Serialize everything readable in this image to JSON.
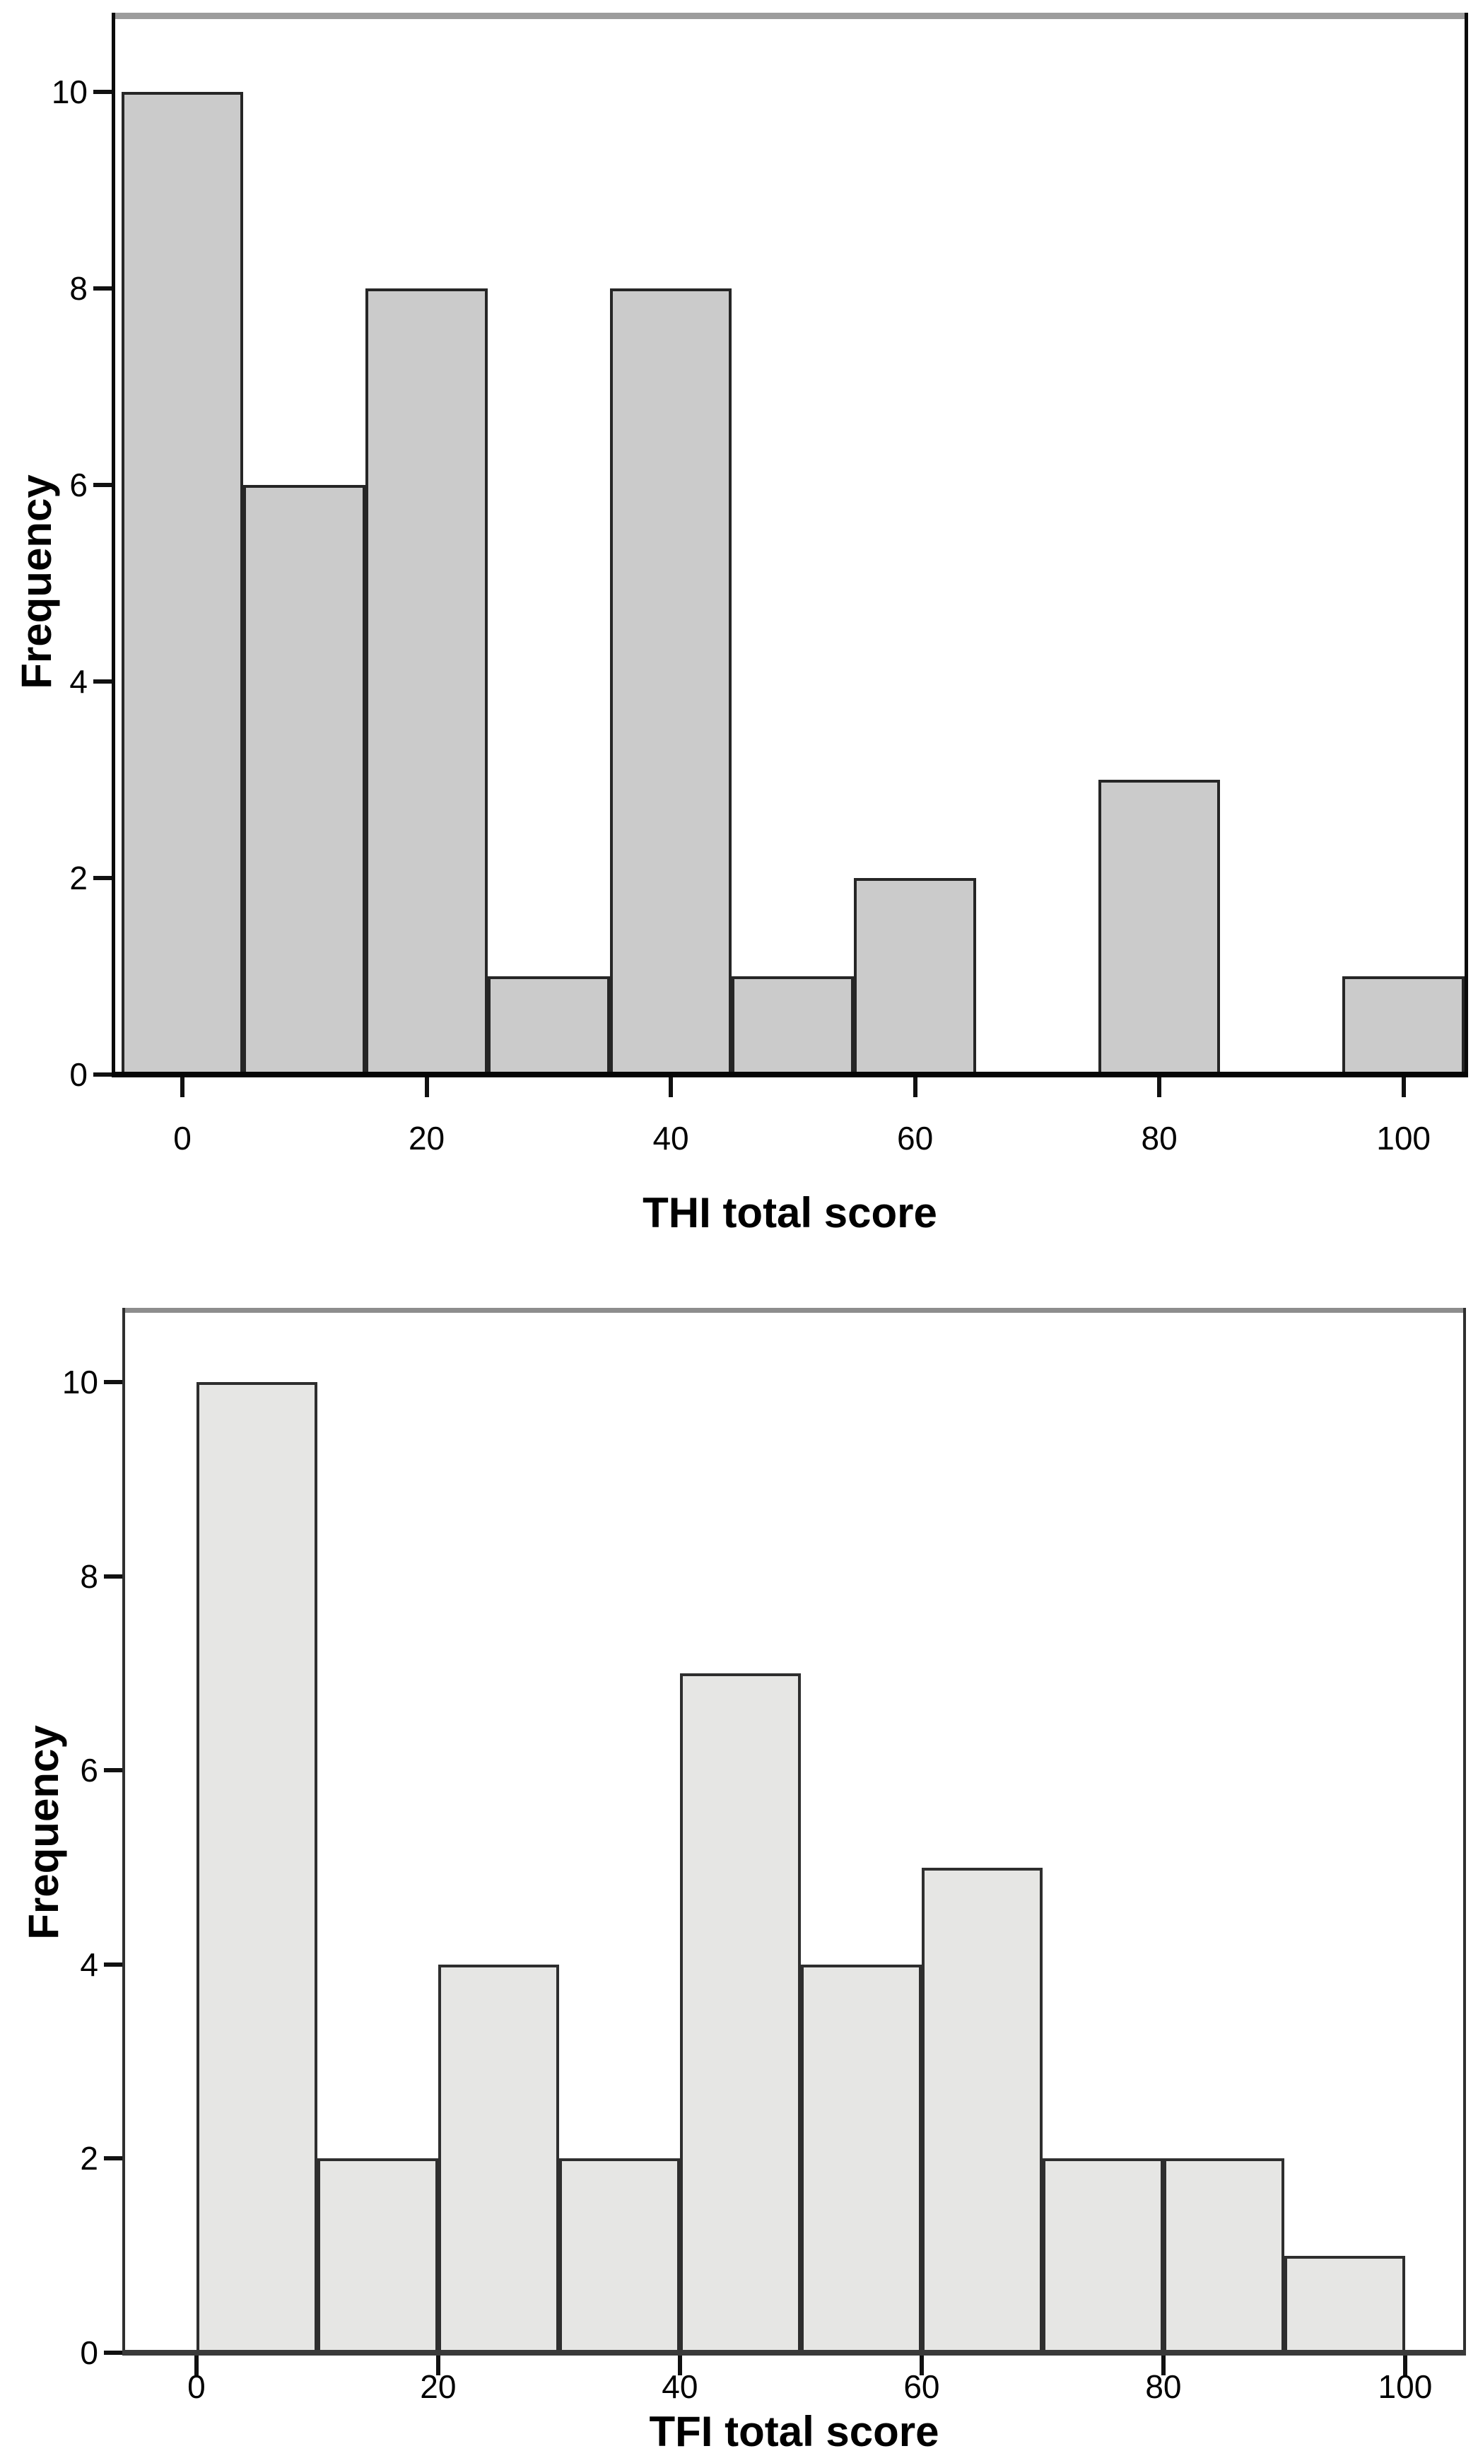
{
  "page": {
    "background": "#ffffff",
    "description": "Two stacked histograms"
  },
  "chart_data": [
    {
      "type": "bar",
      "subtype": "histogram",
      "title": "",
      "xlabel": "THI total score",
      "ylabel": "Frequency",
      "bin_width": 10,
      "bin_edges": [
        -5,
        5,
        15,
        25,
        35,
        45,
        55,
        65,
        75,
        85,
        95,
        105
      ],
      "bin_centers": [
        0,
        10,
        20,
        30,
        40,
        50,
        60,
        70,
        80,
        90,
        100
      ],
      "values": [
        10,
        6,
        8,
        1,
        8,
        1,
        2,
        0,
        3,
        0,
        1
      ],
      "xticks": [
        0,
        20,
        40,
        60,
        80,
        100
      ],
      "yticks": [
        0,
        2,
        4,
        6,
        8,
        10
      ],
      "xlim": [
        -5.5,
        105
      ],
      "ylim": [
        0,
        10.74
      ],
      "grid": false,
      "legend": null,
      "bar_fill": "#cbcbcb",
      "bar_border": "#262626",
      "frame_top_color": "#9c9c9c",
      "axis_color": "#0b0b0b"
    },
    {
      "type": "bar",
      "subtype": "histogram",
      "title": "",
      "xlabel": "TFI total score",
      "ylabel": "Frequency",
      "bin_width": 10,
      "bin_edges": [
        0,
        10,
        20,
        30,
        40,
        50,
        60,
        70,
        80,
        90,
        100
      ],
      "bin_centers": [
        5,
        15,
        25,
        35,
        45,
        55,
        65,
        75,
        85,
        95
      ],
      "values": [
        10,
        2,
        4,
        2,
        7,
        4,
        5,
        2,
        2,
        1
      ],
      "xticks": [
        0,
        20,
        40,
        60,
        80,
        100
      ],
      "yticks": [
        0,
        2,
        4,
        6,
        8,
        10
      ],
      "xlim": [
        -5.9,
        104.8
      ],
      "ylim": [
        0,
        10.71
      ],
      "grid": false,
      "legend": null,
      "bar_fill": "#e6e6e4",
      "bar_border": "#2e2e2e",
      "frame_top_color": "#8d8d8d",
      "axis_color": "#2f2f2f"
    }
  ]
}
